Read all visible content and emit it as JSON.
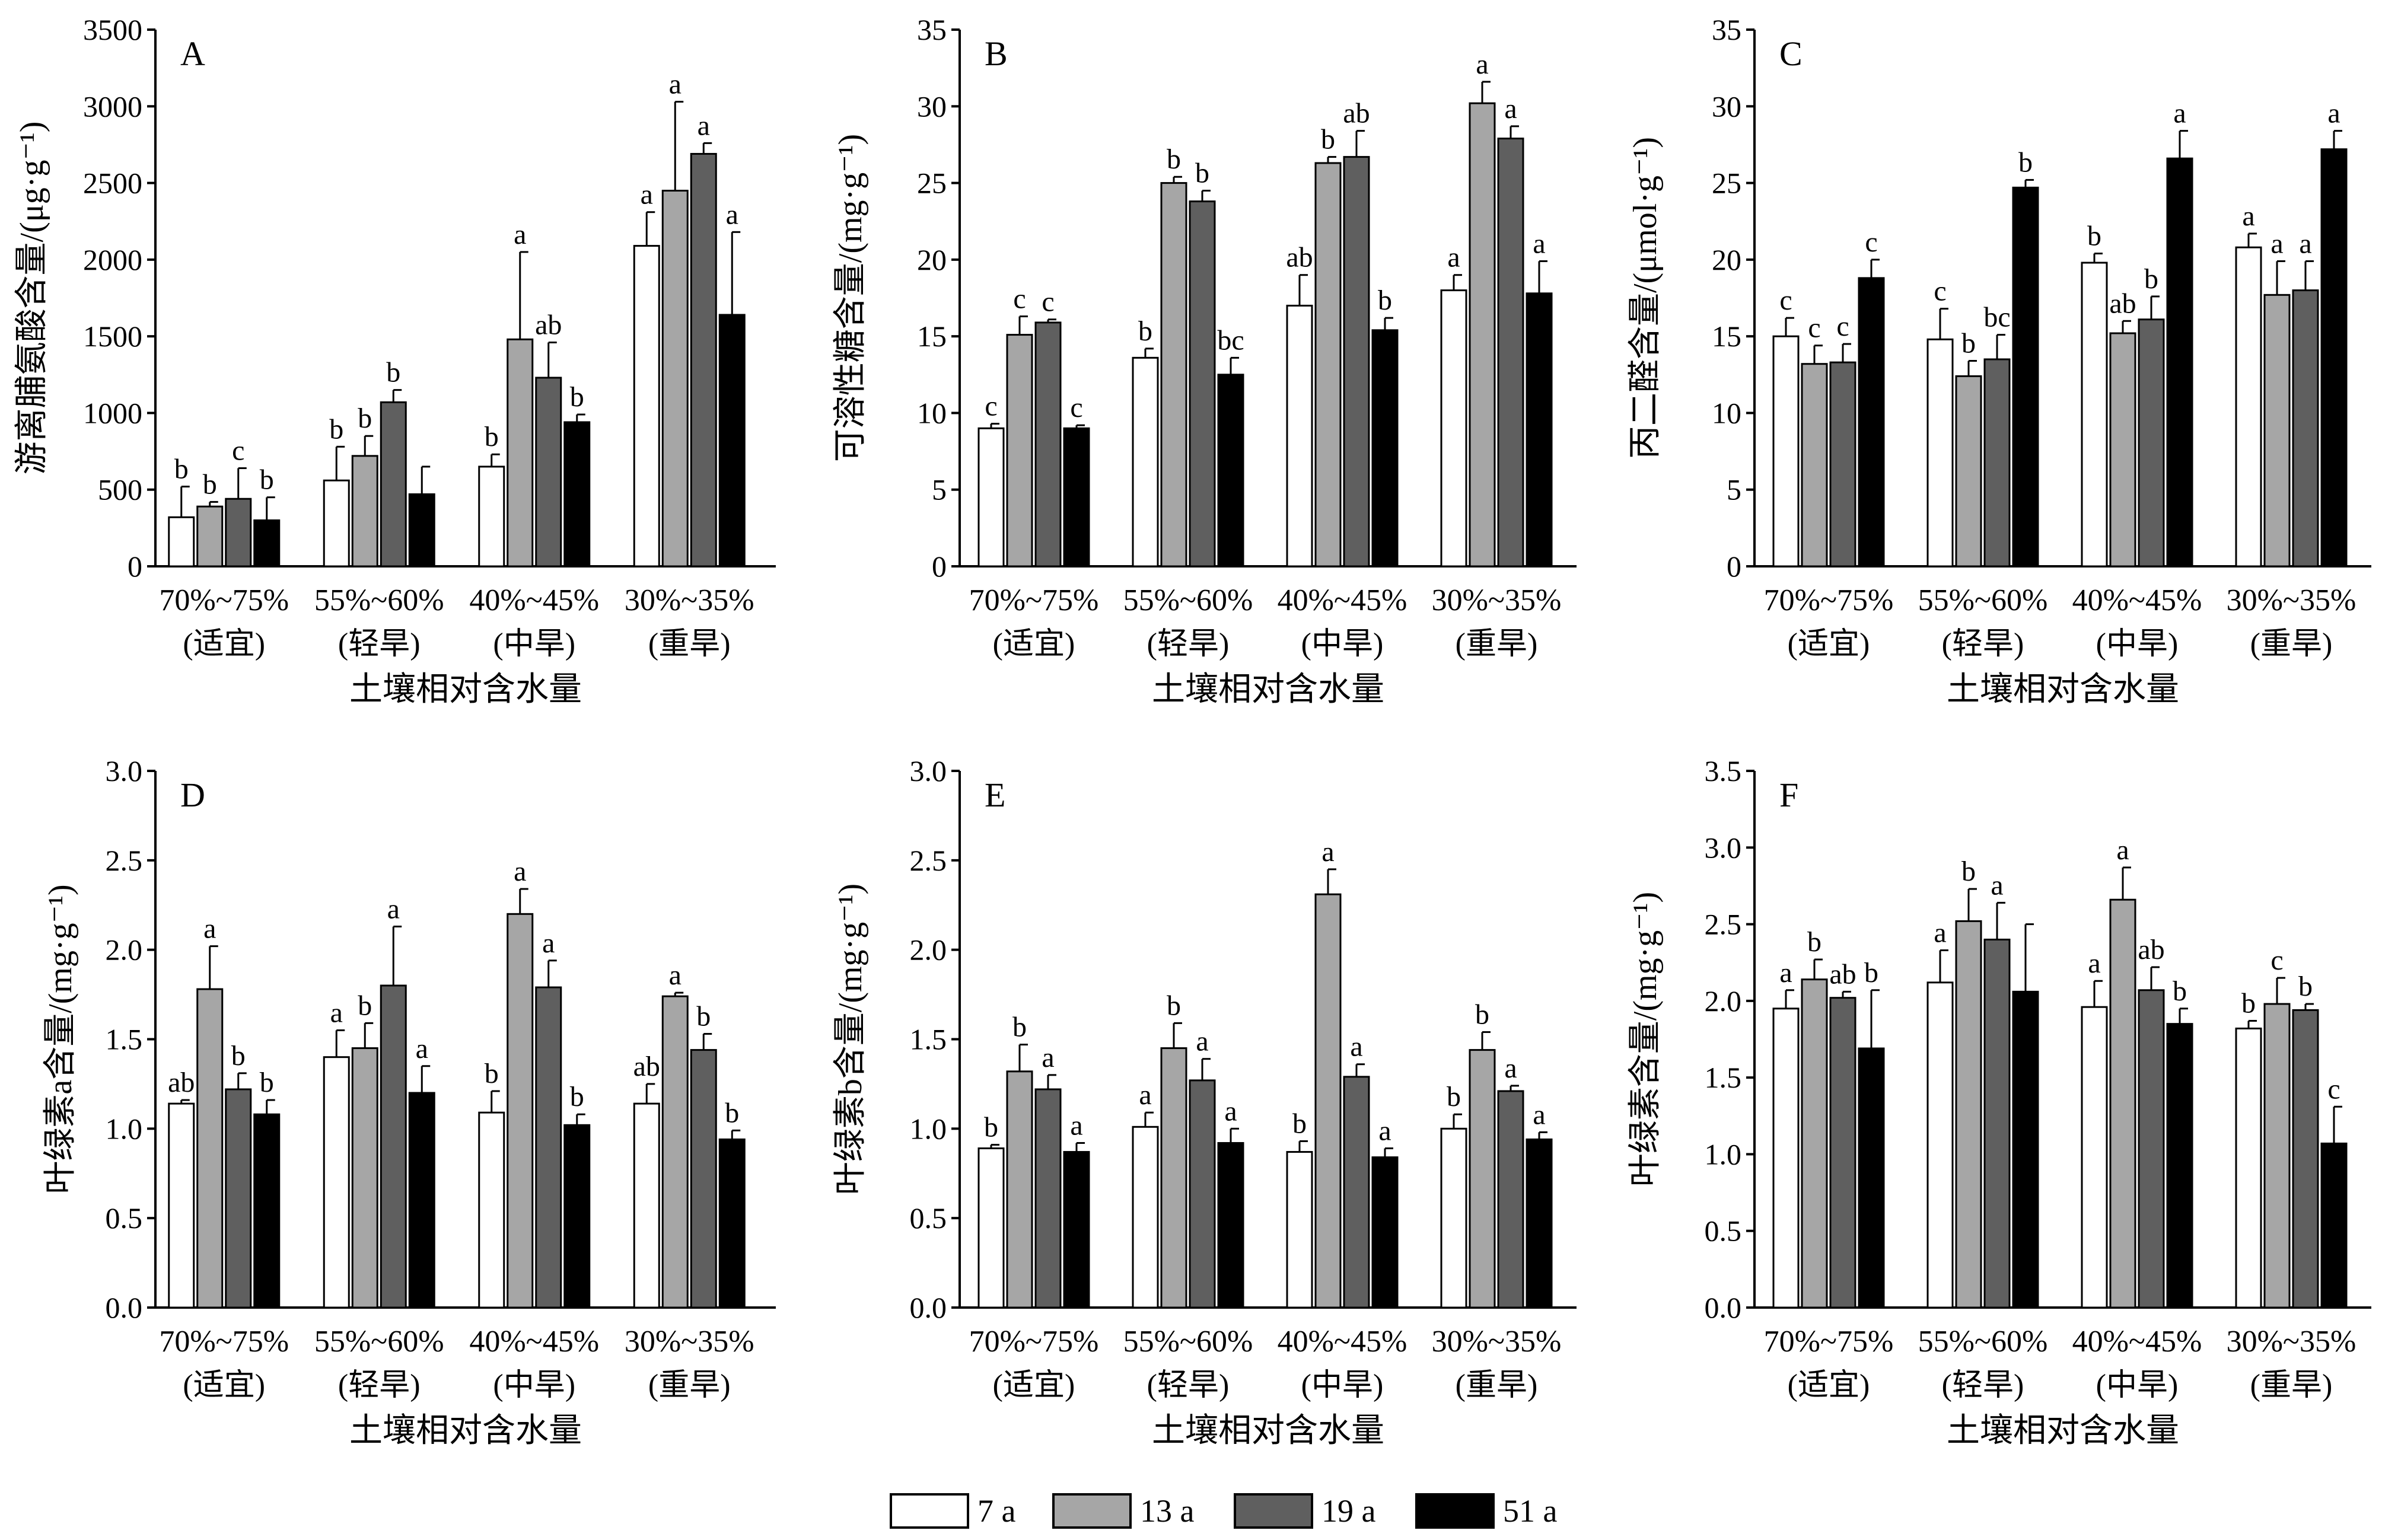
{
  "legend": {
    "series": [
      {
        "name": "7 a",
        "color": "#ffffff"
      },
      {
        "name": "13 a",
        "color": "#a6a6a6"
      },
      {
        "name": "19 a",
        "color": "#5f5f5f"
      },
      {
        "name": "51 a",
        "color": "#000000"
      }
    ]
  },
  "chart_data": [
    {
      "id": "A",
      "type": "bar",
      "panel_letter": "A",
      "ylabel": "游离脯氨酸含量/(μg·g⁻¹)",
      "xlabel": "土壤相对含水量",
      "categories": [
        [
          "70%~75%",
          "(适宜)"
        ],
        [
          "55%~60%",
          "(轻旱)"
        ],
        [
          "40%~45%",
          "(中旱)"
        ],
        [
          "30%~35%",
          "(重旱)"
        ]
      ],
      "ylim": [
        0,
        3500
      ],
      "yticks": [
        0,
        500,
        1000,
        1500,
        2000,
        2500,
        3000,
        3500
      ],
      "ytick_labels": [
        "0",
        "500",
        "1000",
        "1500",
        "2000",
        "2500",
        "3000",
        "3500"
      ],
      "series": [
        {
          "name": "7 a",
          "values": [
            320,
            560,
            650,
            2090
          ],
          "errors": [
            200,
            220,
            80,
            220
          ],
          "letters": [
            "b",
            "b",
            "b",
            "a"
          ]
        },
        {
          "name": "13 a",
          "values": [
            390,
            720,
            1480,
            2450
          ],
          "errors": [
            30,
            130,
            570,
            580
          ],
          "letters": [
            "b",
            "b",
            "a",
            "a"
          ]
        },
        {
          "name": "19 a",
          "values": [
            440,
            1070,
            1230,
            2690
          ],
          "errors": [
            200,
            80,
            230,
            70
          ],
          "letters": [
            "c",
            "b",
            "ab",
            "a"
          ]
        },
        {
          "name": "51 a",
          "values": [
            300,
            470,
            940,
            1640
          ],
          "errors": [
            150,
            180,
            50,
            540
          ],
          "letters": [
            "b",
            "",
            "b",
            "a"
          ]
        }
      ]
    },
    {
      "id": "B",
      "type": "bar",
      "panel_letter": "B",
      "ylabel": "可溶性糖含量/(mg·g⁻¹)",
      "xlabel": "土壤相对含水量",
      "categories": [
        [
          "70%~75%",
          "(适宜)"
        ],
        [
          "55%~60%",
          "(轻旱)"
        ],
        [
          "40%~45%",
          "(中旱)"
        ],
        [
          "30%~35%",
          "(重旱)"
        ]
      ],
      "ylim": [
        0,
        35
      ],
      "yticks": [
        0,
        5,
        10,
        15,
        20,
        25,
        30,
        35
      ],
      "ytick_labels": [
        "0",
        "5",
        "10",
        "15",
        "20",
        "25",
        "30",
        "35"
      ],
      "series": [
        {
          "name": "7 a",
          "values": [
            9.0,
            13.6,
            17.0,
            18.0
          ],
          "errors": [
            0.3,
            0.6,
            2.0,
            1.0
          ],
          "letters": [
            "c",
            "b",
            "ab",
            "a"
          ]
        },
        {
          "name": "13 a",
          "values": [
            15.1,
            25.0,
            26.3,
            30.2
          ],
          "errors": [
            1.2,
            0.4,
            0.4,
            1.4
          ],
          "letters": [
            "c",
            "b",
            "b",
            "a"
          ]
        },
        {
          "name": "19 a",
          "values": [
            15.9,
            23.8,
            26.7,
            27.9
          ],
          "errors": [
            0.2,
            0.7,
            1.7,
            0.8
          ],
          "letters": [
            "c",
            "b",
            "ab",
            "a"
          ]
        },
        {
          "name": "51 a",
          "values": [
            9.0,
            12.5,
            15.4,
            17.8
          ],
          "errors": [
            0.2,
            1.1,
            0.8,
            2.1
          ],
          "letters": [
            "c",
            "bc",
            "b",
            "a"
          ]
        }
      ]
    },
    {
      "id": "C",
      "type": "bar",
      "panel_letter": "C",
      "ylabel": "丙二醛含量/(μmol·g⁻¹)",
      "xlabel": "土壤相对含水量",
      "categories": [
        [
          "70%~75%",
          "(适宜)"
        ],
        [
          "55%~60%",
          "(轻旱)"
        ],
        [
          "40%~45%",
          "(中旱)"
        ],
        [
          "30%~35%",
          "(重旱)"
        ]
      ],
      "ylim": [
        0,
        35
      ],
      "yticks": [
        0,
        5,
        10,
        15,
        20,
        25,
        30,
        35
      ],
      "ytick_labels": [
        "0",
        "5",
        "10",
        "15",
        "20",
        "25",
        "30",
        "35"
      ],
      "series": [
        {
          "name": "7 a",
          "values": [
            15.0,
            14.8,
            19.8,
            20.8
          ],
          "errors": [
            1.2,
            2.0,
            0.6,
            0.9
          ],
          "letters": [
            "c",
            "c",
            "b",
            "a"
          ]
        },
        {
          "name": "13 a",
          "values": [
            13.2,
            12.4,
            15.2,
            17.7
          ],
          "errors": [
            1.2,
            1.0,
            0.8,
            2.2
          ],
          "letters": [
            "c",
            "b",
            "ab",
            "a"
          ]
        },
        {
          "name": "19 a",
          "values": [
            13.3,
            13.5,
            16.1,
            18.0
          ],
          "errors": [
            1.2,
            1.6,
            1.5,
            1.9
          ],
          "letters": [
            "c",
            "bc",
            "b",
            "a"
          ]
        },
        {
          "name": "51 a",
          "values": [
            18.8,
            24.7,
            26.6,
            27.2
          ],
          "errors": [
            1.2,
            0.5,
            1.8,
            1.2
          ],
          "letters": [
            "c",
            "b",
            "a",
            "a"
          ]
        }
      ]
    },
    {
      "id": "D",
      "type": "bar",
      "panel_letter": "D",
      "ylabel": "叶绿素a含量/(mg·g⁻¹)",
      "xlabel": "土壤相对含水量",
      "categories": [
        [
          "70%~75%",
          "(适宜)"
        ],
        [
          "55%~60%",
          "(轻旱)"
        ],
        [
          "40%~45%",
          "(中旱)"
        ],
        [
          "30%~35%",
          "(重旱)"
        ]
      ],
      "ylim": [
        0,
        3
      ],
      "yticks": [
        0,
        0.5,
        1,
        1.5,
        2,
        2.5,
        3
      ],
      "ytick_labels": [
        "0.0",
        "0.5",
        "1.0",
        "1.5",
        "2.0",
        "2.5",
        "3.0"
      ],
      "series": [
        {
          "name": "7 a",
          "values": [
            1.14,
            1.4,
            1.09,
            1.14
          ],
          "errors": [
            0.02,
            0.15,
            0.12,
            0.11
          ],
          "letters": [
            "ab",
            "a",
            "b",
            "ab"
          ]
        },
        {
          "name": "13 a",
          "values": [
            1.78,
            1.45,
            2.2,
            1.74
          ],
          "errors": [
            0.24,
            0.14,
            0.14,
            0.02
          ],
          "letters": [
            "a",
            "b",
            "a",
            "a"
          ]
        },
        {
          "name": "19 a",
          "values": [
            1.22,
            1.8,
            1.79,
            1.44
          ],
          "errors": [
            0.09,
            0.33,
            0.15,
            0.09
          ],
          "letters": [
            "b",
            "a",
            "a",
            "b"
          ]
        },
        {
          "name": "51 a",
          "values": [
            1.08,
            1.2,
            1.02,
            0.94
          ],
          "errors": [
            0.08,
            0.15,
            0.06,
            0.05
          ],
          "letters": [
            "b",
            "a",
            "b",
            "b"
          ]
        }
      ]
    },
    {
      "id": "E",
      "type": "bar",
      "panel_letter": "E",
      "ylabel": "叶绿素b含量/(mg·g⁻¹)",
      "xlabel": "土壤相对含水量",
      "categories": [
        [
          "70%~75%",
          "(适宜)"
        ],
        [
          "55%~60%",
          "(轻旱)"
        ],
        [
          "40%~45%",
          "(中旱)"
        ],
        [
          "30%~35%",
          "(重旱)"
        ]
      ],
      "ylim": [
        0,
        3
      ],
      "yticks": [
        0,
        0.5,
        1,
        1.5,
        2,
        2.5,
        3
      ],
      "ytick_labels": [
        "0.0",
        "0.5",
        "1.0",
        "1.5",
        "2.0",
        "2.5",
        "3.0"
      ],
      "series": [
        {
          "name": "7 a",
          "values": [
            0.89,
            1.01,
            0.87,
            1.0
          ],
          "errors": [
            0.02,
            0.08,
            0.06,
            0.08
          ],
          "letters": [
            "b",
            "a",
            "b",
            "b"
          ]
        },
        {
          "name": "13 a",
          "values": [
            1.32,
            1.45,
            2.31,
            1.44
          ],
          "errors": [
            0.15,
            0.14,
            0.14,
            0.1
          ],
          "letters": [
            "b",
            "b",
            "a",
            "b"
          ]
        },
        {
          "name": "19 a",
          "values": [
            1.22,
            1.27,
            1.29,
            1.21
          ],
          "errors": [
            0.08,
            0.12,
            0.07,
            0.03
          ],
          "letters": [
            "a",
            "a",
            "a",
            "a"
          ]
        },
        {
          "name": "51 a",
          "values": [
            0.87,
            0.92,
            0.84,
            0.94
          ],
          "errors": [
            0.05,
            0.08,
            0.05,
            0.04
          ],
          "letters": [
            "a",
            "a",
            "a",
            "a"
          ]
        }
      ]
    },
    {
      "id": "F",
      "type": "bar",
      "panel_letter": "F",
      "ylabel": "叶绿素含量/(mg·g⁻¹)",
      "xlabel": "土壤相对含水量",
      "categories": [
        [
          "70%~75%",
          "(适宜)"
        ],
        [
          "55%~60%",
          "(轻旱)"
        ],
        [
          "40%~45%",
          "(中旱)"
        ],
        [
          "30%~35%",
          "(重旱)"
        ]
      ],
      "ylim": [
        0,
        3.5
      ],
      "yticks": [
        0,
        0.5,
        1,
        1.5,
        2,
        2.5,
        3,
        3.5
      ],
      "ytick_labels": [
        "0.0",
        "0.5",
        "1.0",
        "1.5",
        "2.0",
        "2.5",
        "3.0",
        "3.5"
      ],
      "series": [
        {
          "name": "7 a",
          "values": [
            1.95,
            2.12,
            1.96,
            1.82
          ],
          "errors": [
            0.12,
            0.21,
            0.17,
            0.05
          ],
          "letters": [
            "a",
            "a",
            "a",
            "b"
          ]
        },
        {
          "name": "13 a",
          "values": [
            2.14,
            2.52,
            2.66,
            1.98
          ],
          "errors": [
            0.13,
            0.21,
            0.21,
            0.17
          ],
          "letters": [
            "b",
            "b",
            "a",
            "c"
          ]
        },
        {
          "name": "19 a",
          "values": [
            2.02,
            2.4,
            2.07,
            1.94
          ],
          "errors": [
            0.04,
            0.24,
            0.15,
            0.04
          ],
          "letters": [
            "ab",
            "a",
            "ab",
            "b"
          ]
        },
        {
          "name": "51 a",
          "values": [
            1.69,
            2.06,
            1.85,
            1.07
          ],
          "errors": [
            0.38,
            0.44,
            0.1,
            0.24
          ],
          "letters": [
            "b",
            "",
            "b",
            "c"
          ]
        }
      ]
    }
  ]
}
